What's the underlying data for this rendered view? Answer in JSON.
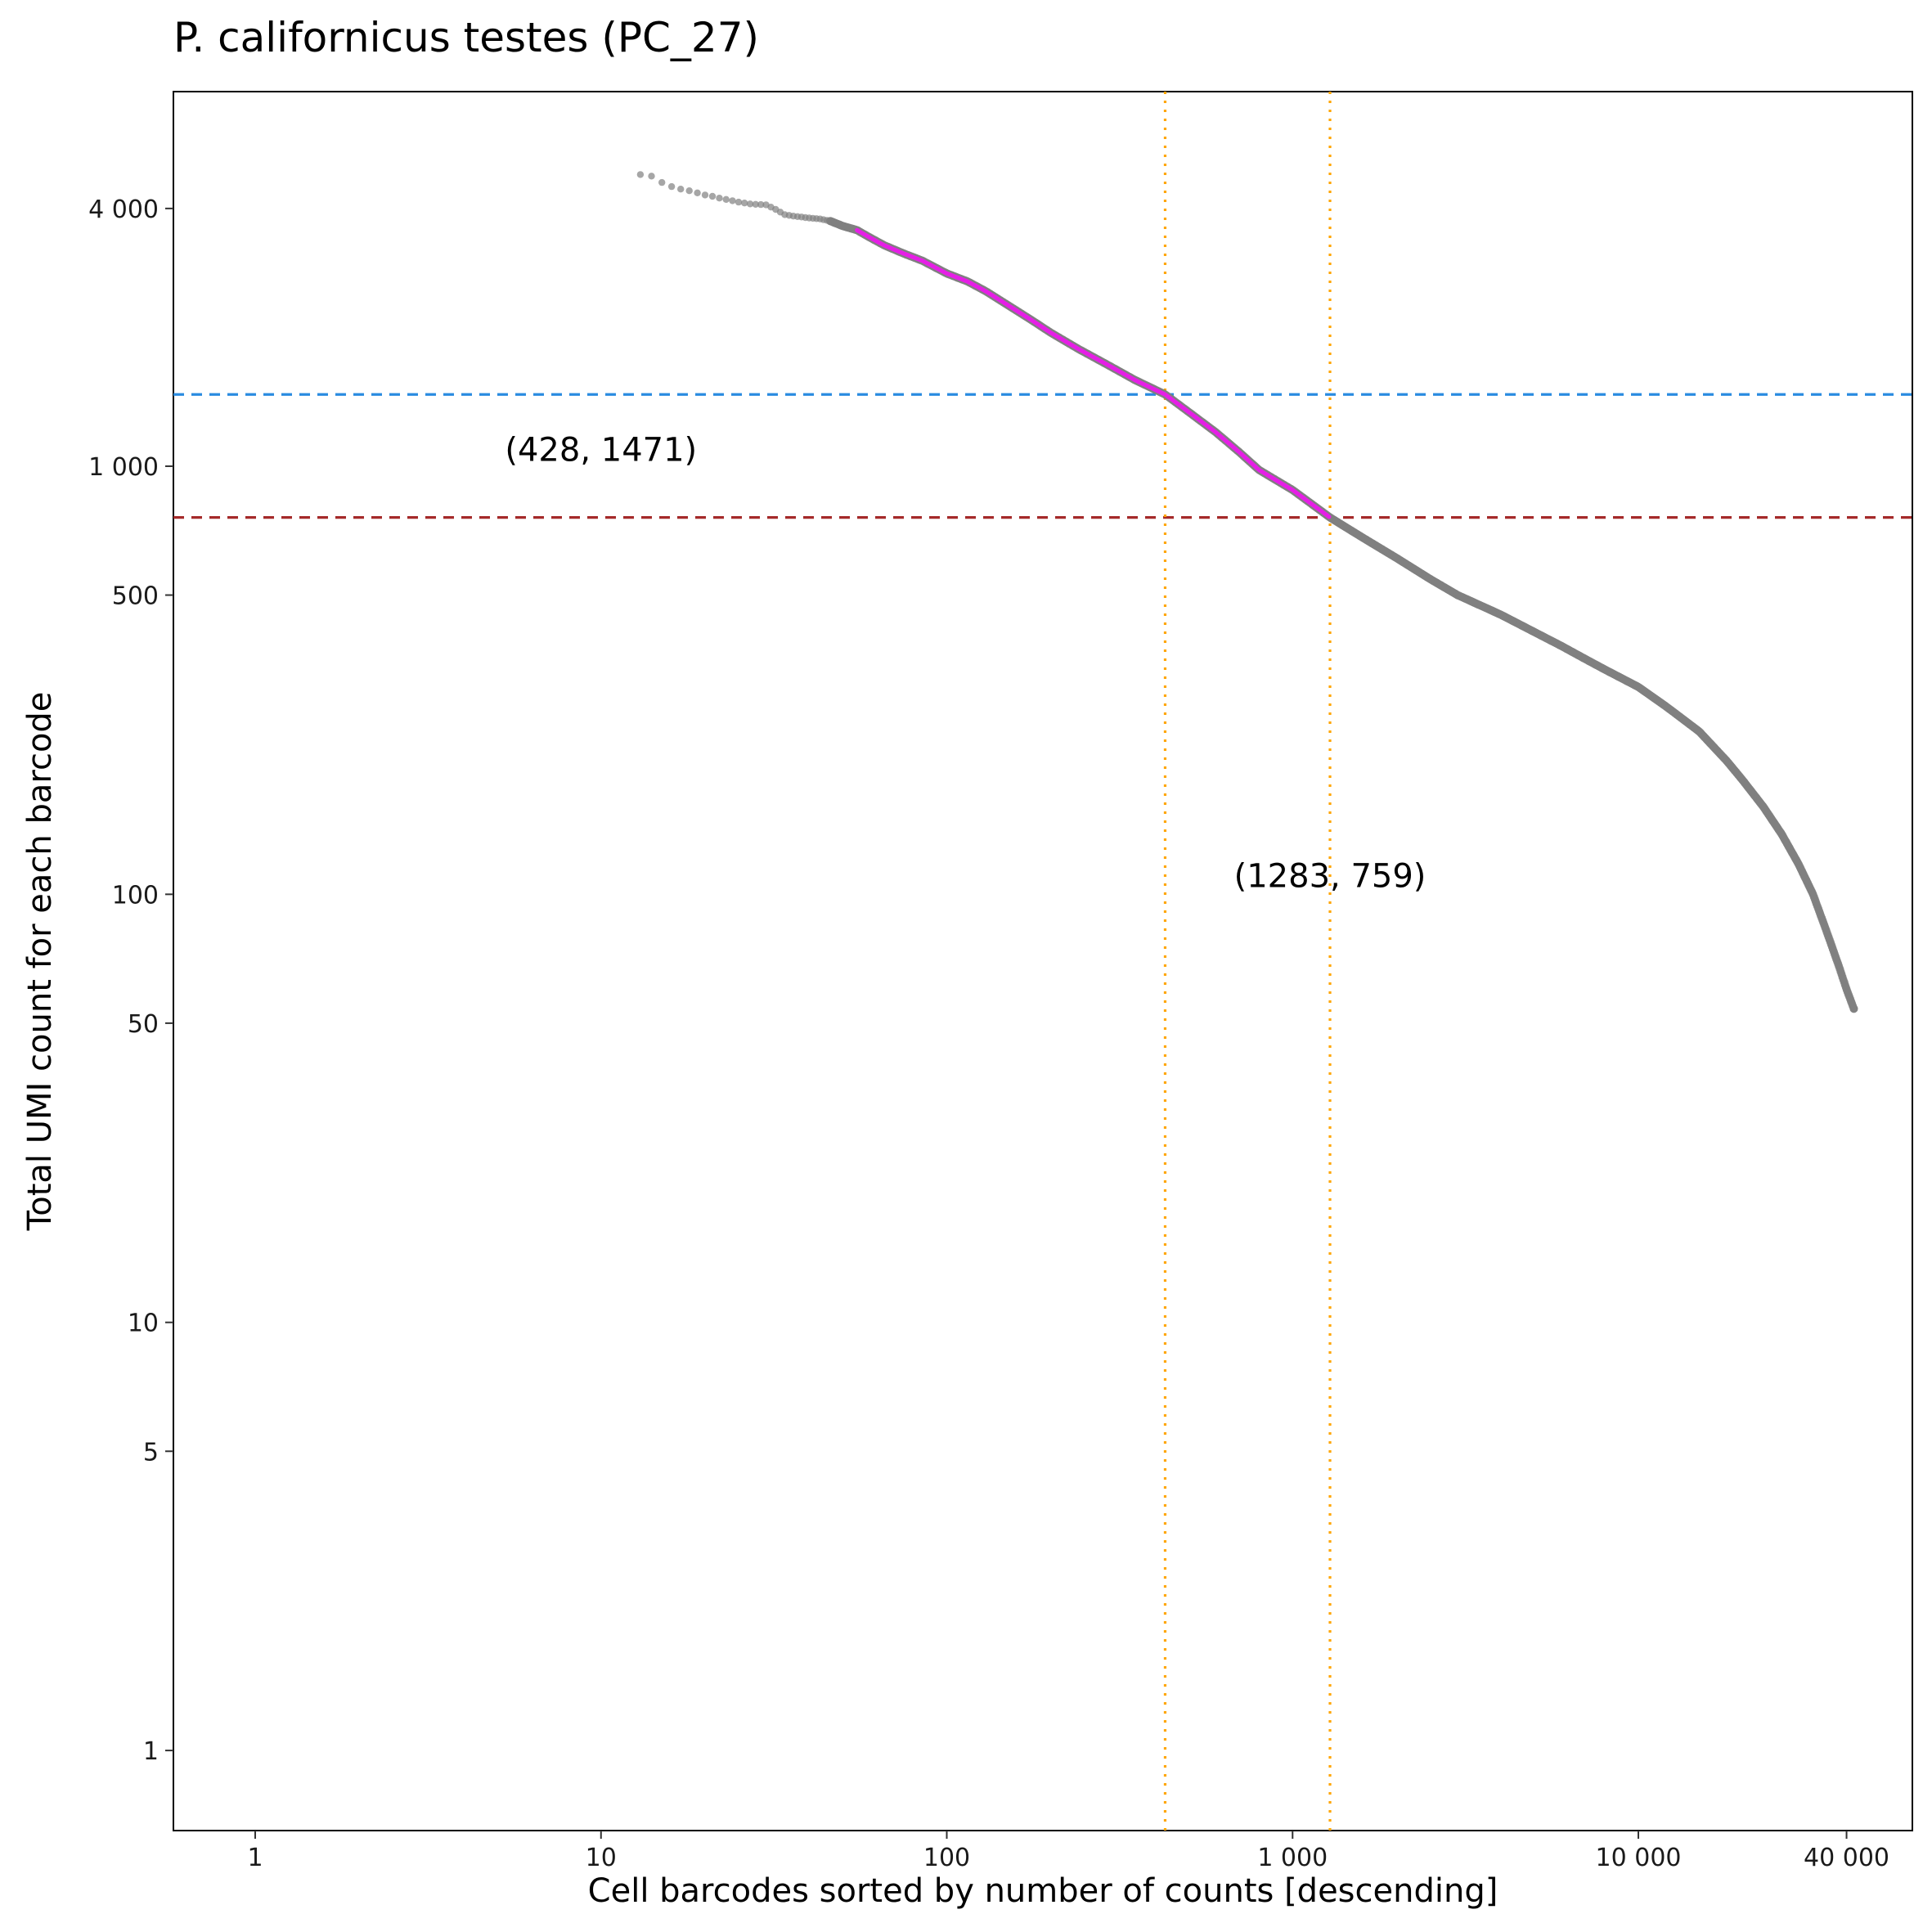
{
  "chart_data": {
    "type": "scatter",
    "title": "P. californicus testes (PC_27)",
    "xlabel": "Cell barcodes sorted by number of counts [descending]",
    "ylabel": "Total UMI count for each barcode",
    "x_scale": "log",
    "y_scale": "log",
    "xlim": [
      0.58,
      62000
    ],
    "ylim": [
      0.65,
      7500
    ],
    "grid": false,
    "x_ticks": [
      {
        "value": 1,
        "label": "1"
      },
      {
        "value": 10,
        "label": "10"
      },
      {
        "value": 100,
        "label": "100"
      },
      {
        "value": 1000,
        "label": "1 000"
      },
      {
        "value": 10000,
        "label": "10 000"
      },
      {
        "value": 40000,
        "label": "40 000"
      }
    ],
    "y_ticks": [
      {
        "value": 1,
        "label": "1"
      },
      {
        "value": 5,
        "label": "5"
      },
      {
        "value": 10,
        "label": "10"
      },
      {
        "value": 50,
        "label": "50"
      },
      {
        "value": 100,
        "label": "100"
      },
      {
        "value": 500,
        "label": "500"
      },
      {
        "value": 1000,
        "label": "1 000"
      },
      {
        "value": 4000,
        "label": "4 000"
      }
    ],
    "series": [
      {
        "points": [
          [
            13,
            4800
          ],
          [
            14,
            4760
          ],
          [
            15,
            4600
          ],
          [
            16,
            4500
          ],
          [
            17,
            4440
          ],
          [
            18,
            4400
          ],
          [
            19,
            4350
          ],
          [
            20,
            4300
          ],
          [
            21,
            4270
          ],
          [
            22,
            4230
          ],
          [
            23,
            4200
          ],
          [
            24,
            4170
          ],
          [
            25,
            4140
          ],
          [
            27,
            4100
          ],
          [
            28,
            4090
          ],
          [
            30,
            4080
          ],
          [
            32,
            3980
          ],
          [
            34,
            3870
          ],
          [
            36,
            3840
          ],
          [
            38,
            3820
          ],
          [
            40,
            3800
          ],
          [
            43,
            3780
          ],
          [
            46,
            3740
          ],
          [
            50,
            3640
          ],
          [
            55,
            3560
          ],
          [
            60,
            3420
          ],
          [
            66,
            3280
          ],
          [
            75,
            3140
          ],
          [
            85,
            3020
          ],
          [
            100,
            2820
          ],
          [
            115,
            2700
          ],
          [
            130,
            2560
          ],
          [
            150,
            2380
          ],
          [
            175,
            2200
          ],
          [
            200,
            2050
          ],
          [
            240,
            1880
          ],
          [
            290,
            1730
          ],
          [
            350,
            1590
          ],
          [
            428,
            1471
          ],
          [
            500,
            1340
          ],
          [
            600,
            1200
          ],
          [
            700,
            1080
          ],
          [
            800,
            980
          ],
          [
            1000,
            880
          ],
          [
            1283,
            759
          ],
          [
            1600,
            680
          ],
          [
            2000,
            610
          ],
          [
            2500,
            545
          ],
          [
            3000,
            500
          ],
          [
            4000,
            450
          ],
          [
            5000,
            410
          ],
          [
            6000,
            380
          ],
          [
            7000,
            355
          ],
          [
            8000,
            335
          ],
          [
            10000,
            305
          ],
          [
            12000,
            275
          ],
          [
            15000,
            240
          ],
          [
            18000,
            205
          ],
          [
            20000,
            185
          ],
          [
            23000,
            160
          ],
          [
            26000,
            138
          ],
          [
            29000,
            118
          ],
          [
            32000,
            100
          ],
          [
            35000,
            82
          ],
          [
            38000,
            68
          ],
          [
            40000,
            60
          ],
          [
            42000,
            54
          ]
        ],
        "color": "#808080"
      },
      {
        "x_range": [
          55,
          1283
        ],
        "color": "#e61ee6"
      }
    ],
    "hlines": [
      {
        "y": 1471,
        "color": "#2a8be0",
        "style": "dashed"
      },
      {
        "y": 759,
        "color": "#a52a2a",
        "style": "dashed"
      }
    ],
    "vlines": [
      {
        "x": 428,
        "color": "#ffa500",
        "style": "dotted"
      },
      {
        "x": 1283,
        "color": "#ffa500",
        "style": "dotted"
      }
    ],
    "annotations": [
      {
        "text": "(428, 1471)",
        "x": 10,
        "y": 1030
      },
      {
        "text": "(1283, 759)",
        "x": 1283,
        "y": 104
      }
    ]
  }
}
